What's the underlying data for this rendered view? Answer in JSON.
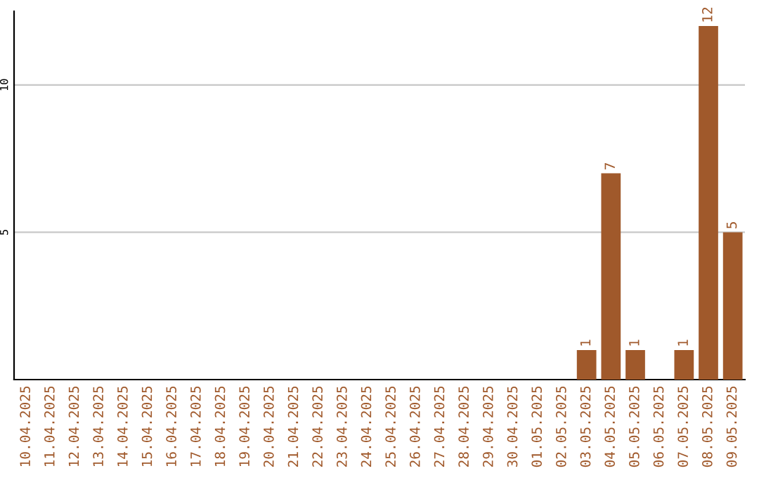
{
  "chart_data": {
    "type": "bar",
    "categories": [
      "10.04.2025",
      "11.04.2025",
      "12.04.2025",
      "13.04.2025",
      "14.04.2025",
      "15.04.2025",
      "16.04.2025",
      "17.04.2025",
      "18.04.2025",
      "19.04.2025",
      "20.04.2025",
      "21.04.2025",
      "22.04.2025",
      "23.04.2025",
      "24.04.2025",
      "25.04.2025",
      "26.04.2025",
      "27.04.2025",
      "28.04.2025",
      "29.04.2025",
      "30.04.2025",
      "01.05.2025",
      "02.05.2025",
      "03.05.2025",
      "04.05.2025",
      "05.05.2025",
      "06.05.2025",
      "07.05.2025",
      "08.05.2025",
      "09.05.2025"
    ],
    "values": [
      null,
      null,
      null,
      null,
      null,
      null,
      null,
      null,
      null,
      null,
      null,
      null,
      null,
      null,
      null,
      null,
      null,
      null,
      null,
      null,
      null,
      null,
      null,
      1,
      7,
      1,
      null,
      1,
      12,
      5
    ],
    "color": "#a0592b",
    "ylim": [
      0,
      12.5
    ],
    "yticks": [
      5,
      10
    ],
    "grid": "y",
    "data_labels": true
  }
}
